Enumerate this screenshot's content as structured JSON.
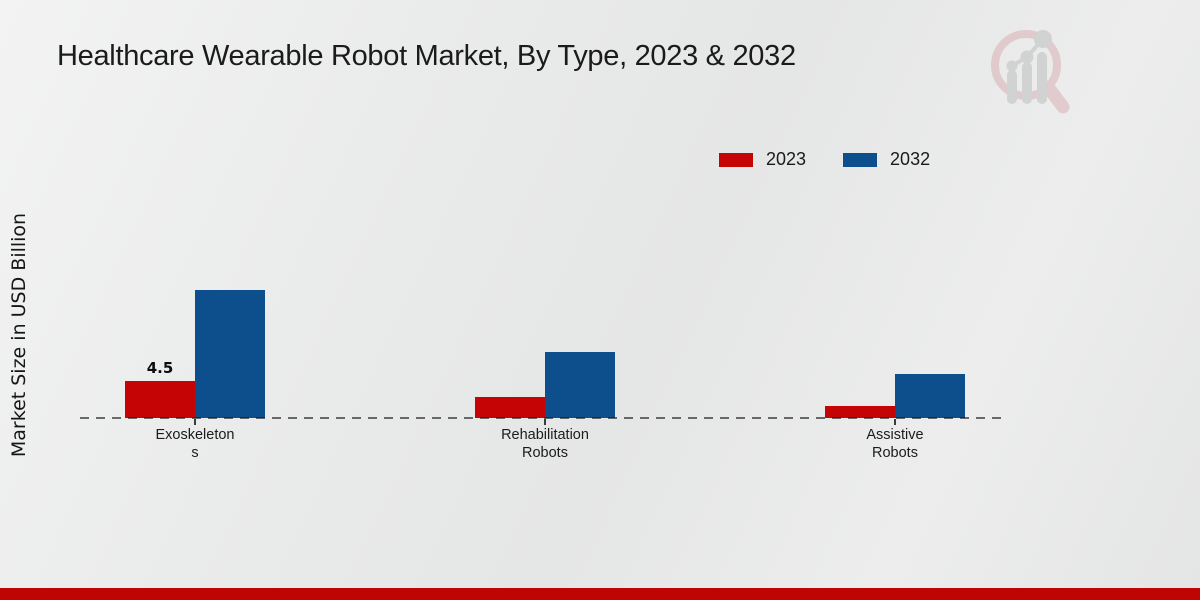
{
  "title": "Healthcare Wearable Robot Market, By Type, 2023 & 2032",
  "y_axis_label": "Market Size in USD Billion",
  "watermark_icon": "magnifier-bar-chart-logo",
  "colors": {
    "series_2023": "#c50505",
    "series_2032": "#0d4e8c",
    "bottom_strip": "#bf0404",
    "background": "#e9eaea"
  },
  "legend": {
    "items": [
      {
        "label": "2023",
        "color": "#c50505"
      },
      {
        "label": "2032",
        "color": "#0d4e8c"
      }
    ]
  },
  "chart_data": {
    "type": "bar",
    "title": "Healthcare Wearable Robot Market, By Type, 2023 & 2032",
    "xlabel": "",
    "ylabel": "Market Size in USD Billion",
    "categories": [
      "Exoskeletons",
      "Rehabilitation Robots",
      "Assistive Robots"
    ],
    "category_display_lines": [
      [
        "Exoskeleton",
        "s"
      ],
      [
        "Rehabilitation",
        "Robots"
      ],
      [
        "Assistive",
        "Robots"
      ]
    ],
    "series": [
      {
        "name": "2023",
        "color": "#c50505",
        "values": [
          4.5,
          2.5,
          1.4
        ],
        "data_labels": [
          "4.5",
          "",
          ""
        ]
      },
      {
        "name": "2032",
        "color": "#0d4e8c",
        "values": [
          15.6,
          8.0,
          5.4
        ],
        "data_labels": [
          "",
          "",
          ""
        ]
      }
    ],
    "ylim": [
      0,
      16
    ],
    "grid": false,
    "y_axis_ticks_visible": false,
    "baseline_style": "dashed",
    "legend_position": "top-right"
  }
}
